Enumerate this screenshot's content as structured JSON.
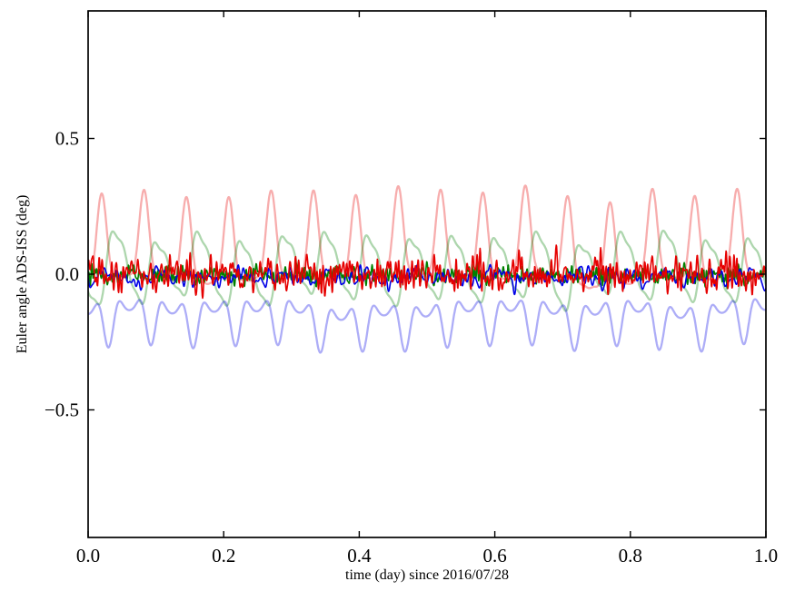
{
  "chart_data": {
    "type": "line",
    "title": "",
    "xlabel": "time (day) since 2016/07/28",
    "ylabel": "Euler angle ADS-ISS (deg)",
    "xlim": [
      0.0,
      1.0
    ],
    "ylim": [
      -0.97,
      0.97
    ],
    "grid": false,
    "legend": null,
    "frame_color": "#000000",
    "background": "#ffffff",
    "xticks": [
      {
        "value": 0.0,
        "label": "0.0"
      },
      {
        "value": 0.2,
        "label": "0.2"
      },
      {
        "value": 0.4,
        "label": "0.4"
      },
      {
        "value": 0.6,
        "label": "0.6"
      },
      {
        "value": 0.8,
        "label": "0.8"
      },
      {
        "value": 1.0,
        "label": "1.0"
      }
    ],
    "yticks": [
      {
        "value": -0.5,
        "label": "−0.5"
      },
      {
        "value": 0.0,
        "label": "0.0"
      },
      {
        "value": 0.5,
        "label": "0.5"
      }
    ],
    "orbital_period_cycles_per_day": 16,
    "series": [
      {
        "name": "pale-red-model",
        "color": "rgba(230,0,0,0.32)",
        "width": 2.3,
        "offset": 0.075,
        "approx_range": [
          -0.1,
          0.31
        ],
        "components": [
          {
            "amp": 0.14,
            "freq": 16,
            "phase": -0.44
          },
          {
            "amp": 0.068,
            "freq": 32,
            "phase": -2.45
          },
          {
            "amp": 0.02,
            "freq": 48,
            "phase": -4.46
          }
        ],
        "noise": {
          "amp": 0.014,
          "fmin": 1,
          "fmax": 12,
          "n": 16,
          "seed": 101
        }
      },
      {
        "name": "pale-green-model",
        "color": "rgba(0,128,0,0.32)",
        "width": 2.3,
        "offset": 0.02,
        "approx_range": [
          -0.12,
          0.16
        ],
        "components": [
          {
            "amp": 0.115,
            "freq": 16,
            "phase": -2.65
          },
          {
            "amp": 0.022,
            "freq": 32,
            "phase": 1.0
          },
          {
            "amp": 0.018,
            "freq": 48,
            "phase": 4.61
          }
        ],
        "noise": {
          "amp": 0.012,
          "fmin": 1,
          "fmax": 12,
          "n": 16,
          "seed": 102
        }
      },
      {
        "name": "pale-blue-model",
        "color": "rgba(0,0,230,0.32)",
        "width": 2.3,
        "offset": -0.16,
        "approx_range": [
          -0.27,
          -0.05
        ],
        "components": [
          {
            "amp": 0.052,
            "freq": 16,
            "phase": 1.7
          },
          {
            "amp": 0.05,
            "freq": 32,
            "phase": -1.32
          },
          {
            "amp": 0.012,
            "freq": 48,
            "phase": -4.34
          }
        ],
        "noise": {
          "amp": 0.01,
          "fmin": 1,
          "fmax": 10,
          "n": 14,
          "seed": 103
        }
      },
      {
        "name": "green-measured",
        "color": "#008000",
        "width": 1.6,
        "offset": -0.004,
        "approx_range": [
          -0.05,
          0.04
        ],
        "components": [
          {
            "amp": 0.008,
            "freq": 16,
            "phase": 2.0
          }
        ],
        "noise": {
          "amp": 0.016,
          "fmin": 10,
          "fmax": 300,
          "n": 60,
          "seed": 105
        }
      },
      {
        "name": "blue-measured",
        "color": "#0000e6",
        "width": 1.6,
        "offset": -0.012,
        "approx_range": [
          -0.06,
          0.03
        ],
        "components": [
          {
            "amp": 0.012,
            "freq": 16,
            "phase": 4.0
          }
        ],
        "noise": {
          "amp": 0.016,
          "fmin": 6,
          "fmax": 160,
          "n": 50,
          "seed": 106
        }
      },
      {
        "name": "red-measured",
        "color": "#e60000",
        "width": 1.6,
        "offset": 0.0,
        "approx_range": [
          -0.08,
          0.07
        ],
        "components": [
          {
            "amp": 0.018,
            "freq": 16,
            "phase": 0.8
          }
        ],
        "noise": {
          "amp": 0.028,
          "fmin": 8,
          "fmax": 260,
          "n": 60,
          "seed": 104
        }
      }
    ]
  }
}
